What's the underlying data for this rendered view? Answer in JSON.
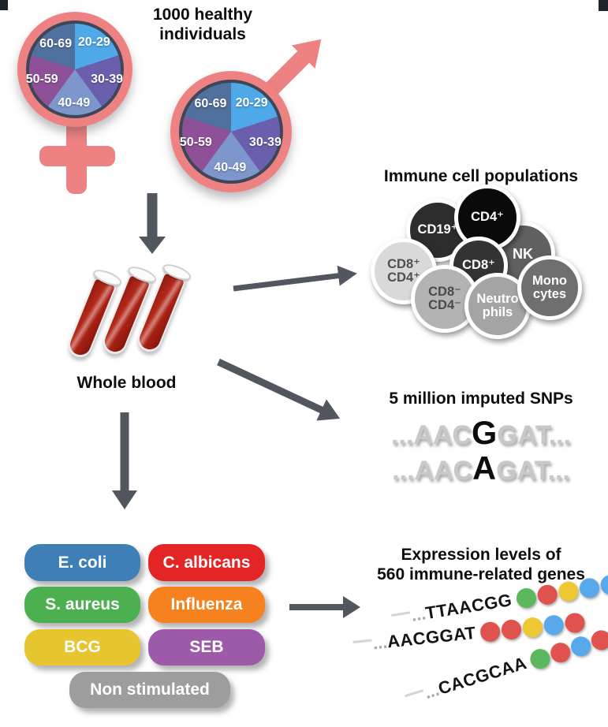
{
  "demographics": {
    "title_line1": "1000 healthy",
    "title_line2": "individuals",
    "age_groups": [
      {
        "label": "20-29",
        "color": "#4FA8E8"
      },
      {
        "label": "30-39",
        "color": "#6A5FAD"
      },
      {
        "label": "40-49",
        "color": "#7D97CD"
      },
      {
        "label": "50-59",
        "color": "#8E5097"
      },
      {
        "label": "60-69",
        "color": "#50709D"
      }
    ],
    "symbol_color": "#EE8282"
  },
  "whole_blood_label": "Whole blood",
  "immune_cells": {
    "title": "Immune cell populations",
    "cells": [
      {
        "label": "NK",
        "color": "#606060",
        "text_color": "#FFFFFF"
      },
      {
        "label": "CD19⁺",
        "color": "#2D2D2D",
        "text_color": "#FFFFFF"
      },
      {
        "label": "CD4⁺",
        "color": "#0A0A0A",
        "text_color": "#FFFFFF"
      },
      {
        "label": "CD8⁺\nCD4⁺",
        "color": "#D9D9D9",
        "text_color": "#4F4F4F"
      },
      {
        "label": "CD8⁺",
        "color": "#333333",
        "text_color": "#FFFFFF"
      },
      {
        "label": "CD8⁻\nCD4⁻",
        "color": "#B3B3B3",
        "text_color": "#4A4A4A"
      },
      {
        "label": "Neutro\nphils",
        "color": "#A4A4A4",
        "text_color": "#FFFFFF"
      },
      {
        "label": "Mono\ncytes",
        "color": "#6F6F6F",
        "text_color": "#FFFFFF"
      }
    ]
  },
  "snps": {
    "title": "5 million imputed SNPs",
    "sequences": [
      {
        "prefix": "...AAC",
        "variant": "G",
        "suffix": "GAT..."
      },
      {
        "prefix": "...AAC",
        "variant": "A",
        "suffix": "GAT..."
      }
    ]
  },
  "stimulations": [
    {
      "label": "E. coli",
      "color": "#3E7FB7"
    },
    {
      "label": "C. albicans",
      "color": "#E32526"
    },
    {
      "label": "S. aureus",
      "color": "#4DB050"
    },
    {
      "label": "Influenza",
      "color": "#F5821E"
    },
    {
      "label": "BCG",
      "color": "#E7C52E"
    },
    {
      "label": "SEB",
      "color": "#9C5AA8"
    },
    {
      "label": "Non stimulated",
      "color": "#9D9D9D"
    }
  ],
  "expression": {
    "title_line1": "Expression levels of",
    "title_line2": "560 immune-related genes",
    "sequences": [
      {
        "prefix": "...",
        "text": "TTAACGG",
        "dots": [
          "#5CB85C",
          "#E0524E",
          "#EEC832",
          "#58A8EC",
          "#58A8EC"
        ]
      },
      {
        "prefix": "...",
        "text": "AACGGAT",
        "dots": [
          "#E0524E",
          "#E0524E",
          "#EEC832",
          "#58A8EC",
          "#E0524E"
        ]
      },
      {
        "prefix": "...",
        "text": "CACGCAA",
        "dots": [
          "#5CB85C",
          "#E0524E",
          "#58A8EC",
          "#E0524E",
          "#E0524E"
        ]
      }
    ]
  },
  "colors": {
    "arrow": "#51565F",
    "blood_red": "#B0261A"
  }
}
